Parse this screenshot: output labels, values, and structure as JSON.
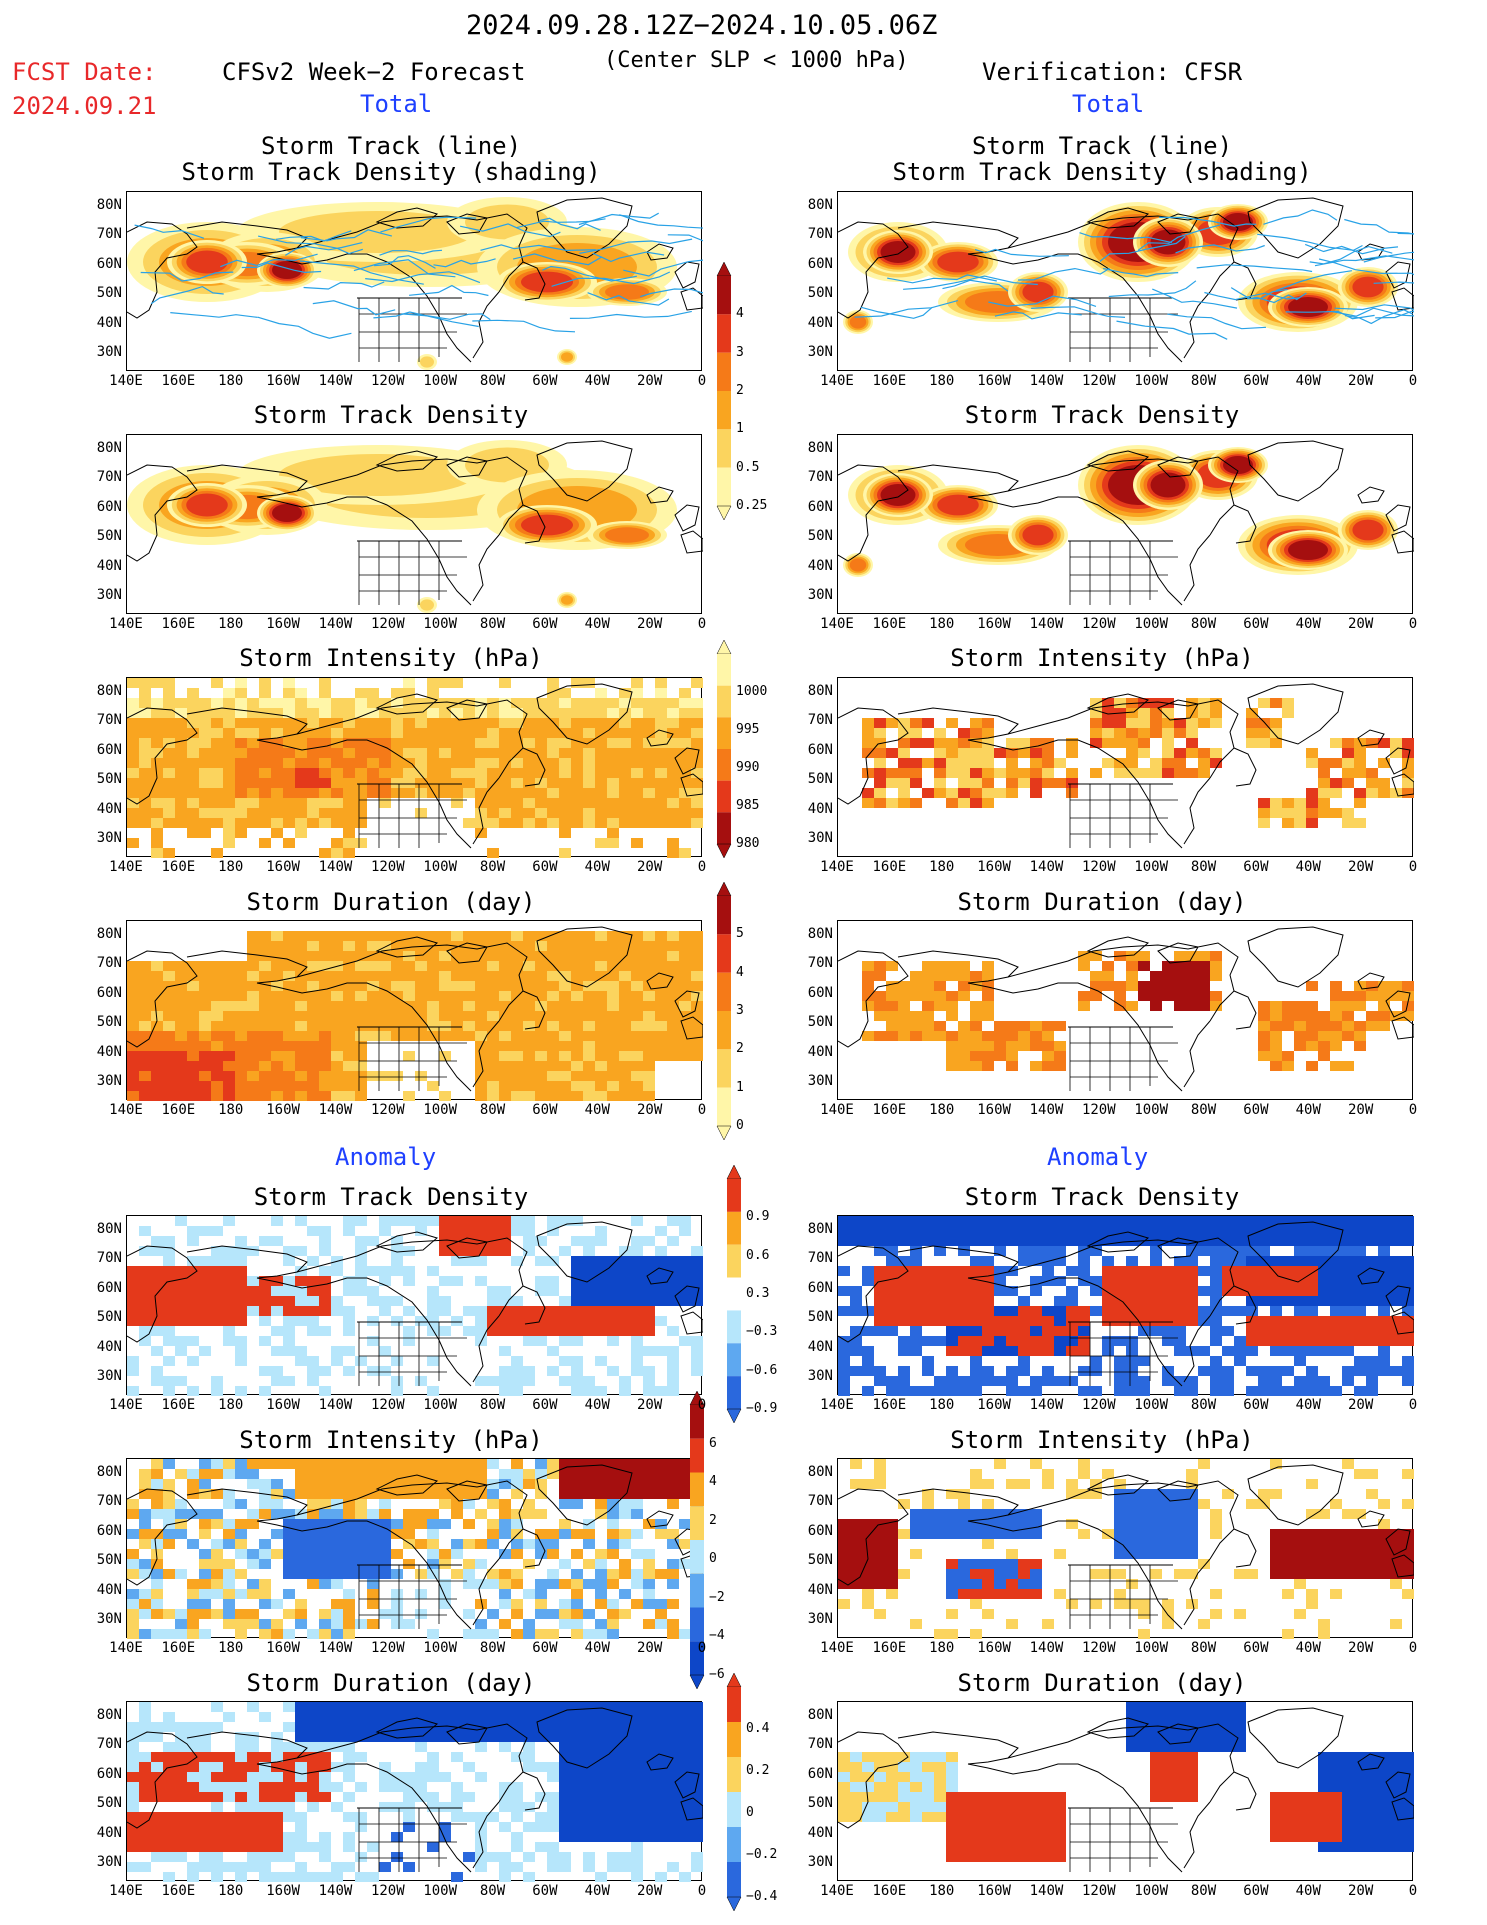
{
  "header": {
    "period": "2024.09.28.12Z−2024.10.05.06Z",
    "condition": "(Center SLP < 1000 hPa)",
    "fcst_label": "FCST Date:",
    "fcst_date": "2024.09.21",
    "left_title": "CFSv2 Week−2 Forecast",
    "right_title": "Verification: CFSR",
    "total_label": "Total",
    "anomaly_label": "Anomaly"
  },
  "panel_titles": {
    "track1": "Storm Track (line)",
    "track2": "Storm Track Density (shading)",
    "density": "Storm Track Density",
    "intensity": "Storm Intensity (hPa)",
    "duration": "Storm Duration (day)"
  },
  "axes": {
    "lat_labels": [
      "80N",
      "70N",
      "60N",
      "50N",
      "40N",
      "30N"
    ],
    "lon_labels": [
      "140E",
      "160E",
      "180",
      "160W",
      "140W",
      "120W",
      "100W",
      "80W",
      "60W",
      "40W",
      "20W",
      "0"
    ]
  },
  "colorbars": {
    "density": [
      "4",
      "3",
      "2",
      "1",
      "0.5",
      "0.25"
    ],
    "intensity": [
      "1000",
      "995",
      "990",
      "985",
      "980"
    ],
    "duration": [
      "5",
      "4",
      "3",
      "2",
      "1",
      "0"
    ],
    "anom_density": [
      "0.9",
      "0.6",
      "0.3",
      "−0.3",
      "−0.6",
      "−0.9"
    ],
    "anom_intensity": [
      "6",
      "4",
      "2",
      "0",
      "−2",
      "−4",
      "−6"
    ],
    "anom_duration": [
      "0.4",
      "0.2",
      "0",
      "−0.2",
      "−0.4"
    ]
  },
  "colors": {
    "yellow_light": "#fff6a8",
    "yellow": "#fbd45e",
    "orange_light": "#f9a520",
    "orange": "#f57a18",
    "red": "#e4391b",
    "dark_red": "#a50f0f",
    "blue_light": "#b6e6fb",
    "blue_mid": "#5ea8f0",
    "blue": "#2a68dd",
    "blue_dark": "#0d46c8",
    "track_line": "#29a2e6"
  }
}
